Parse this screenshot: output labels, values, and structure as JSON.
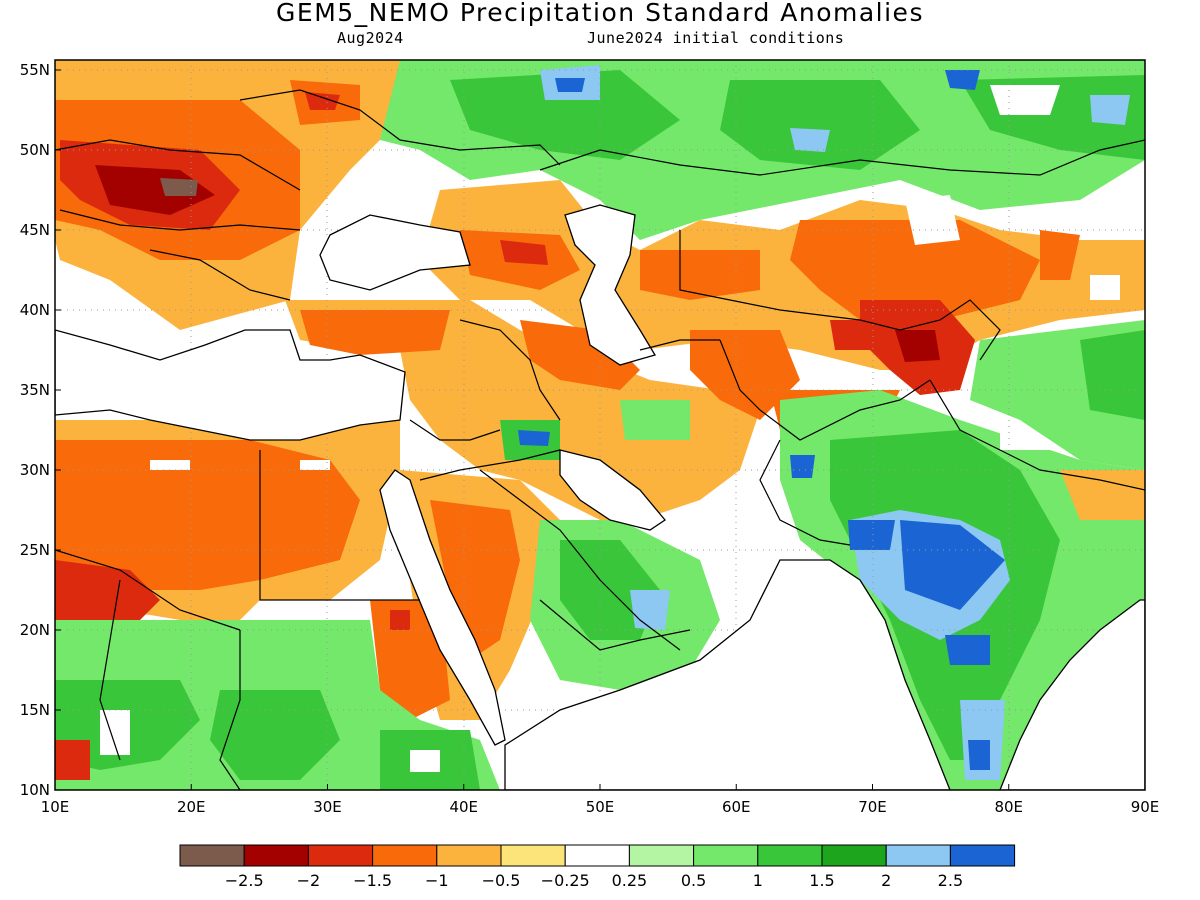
{
  "title": "GEM5_NEMO Precipitation Standard Anomalies",
  "subtitle_left": "Aug2024",
  "subtitle_right": "June2024 initial conditions",
  "lon_ticks": [
    "10E",
    "20E",
    "30E",
    "40E",
    "50E",
    "60E",
    "70E",
    "80E",
    "90E"
  ],
  "lat_ticks": [
    "10N",
    "15N",
    "20N",
    "25N",
    "30N",
    "35N",
    "40N",
    "45N",
    "50N",
    "55N"
  ],
  "colorbar": {
    "colors": [
      "#7c5a4c",
      "#a30000",
      "#dc2a0e",
      "#f86a0a",
      "#fbb33e",
      "#fde47a",
      "#ffffff",
      "#b3f5a3",
      "#74e86a",
      "#3ac63a",
      "#1ea51e",
      "#8cc8f2",
      "#1a64d4"
    ],
    "labels": [
      "−2.5",
      "−2",
      "−1.5",
      "−1",
      "−0.5",
      "−0.25",
      "0.25",
      "0.5",
      "1",
      "1.5",
      "2",
      "2.5"
    ]
  },
  "colors": {
    "ocean": "#ffffff",
    "coast": "#000000",
    "grid": "#9a9a9a"
  }
}
